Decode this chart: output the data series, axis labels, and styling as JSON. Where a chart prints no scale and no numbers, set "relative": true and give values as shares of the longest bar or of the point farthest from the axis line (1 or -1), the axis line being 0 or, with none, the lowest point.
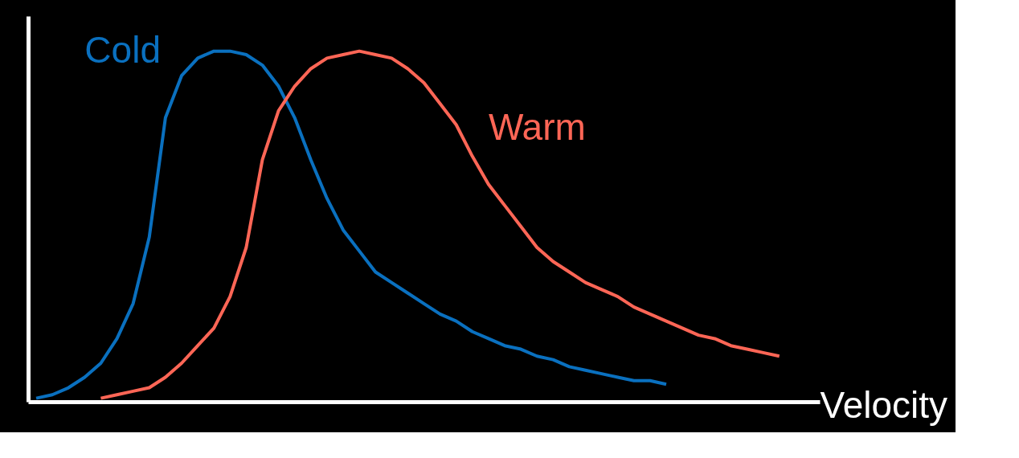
{
  "chart_data": {
    "type": "line",
    "relative": true,
    "xlabel": "Velocity",
    "categories": [
      null,
      null,
      null,
      null,
      null,
      null,
      null,
      null,
      null,
      null,
      null,
      null,
      null,
      null,
      null,
      null,
      null,
      null,
      null,
      null,
      null,
      null,
      null,
      null,
      null,
      null,
      null,
      null,
      null,
      null,
      null,
      null,
      null,
      null,
      null,
      null,
      null,
      null,
      null,
      null,
      null,
      null,
      null,
      null,
      null,
      null,
      null,
      null
    ],
    "series": [
      {
        "name": "Cold",
        "color": "#0a70bf",
        "values": [
          0.01,
          0.02,
          0.04,
          0.07,
          0.11,
          0.18,
          0.28,
          0.47,
          0.81,
          0.93,
          0.98,
          1.0,
          1.0,
          0.99,
          0.96,
          0.9,
          0.81,
          0.69,
          0.58,
          0.49,
          0.43,
          0.37,
          0.34,
          0.31,
          0.28,
          0.25,
          0.23,
          0.2,
          0.18,
          0.16,
          0.15,
          0.13,
          0.12,
          0.1,
          0.09,
          0.08,
          0.07,
          0.06,
          0.06,
          0.05,
          null,
          null,
          null,
          null,
          null,
          null,
          null,
          null
        ]
      },
      {
        "name": "Warm",
        "color": "#ff6656",
        "values": [
          null,
          null,
          null,
          null,
          0.01,
          0.02,
          0.03,
          0.04,
          0.07,
          0.11,
          0.16,
          0.21,
          0.3,
          0.44,
          0.69,
          0.83,
          0.9,
          0.95,
          0.98,
          0.99,
          1.0,
          0.99,
          0.98,
          0.95,
          0.91,
          0.85,
          0.79,
          0.7,
          0.62,
          0.56,
          0.5,
          0.44,
          0.4,
          0.37,
          0.34,
          0.32,
          0.3,
          0.27,
          0.25,
          0.23,
          0.21,
          0.19,
          0.18,
          0.16,
          0.15,
          0.14,
          0.13,
          null
        ]
      }
    ],
    "marker": "none",
    "line_style": "solid"
  }
}
